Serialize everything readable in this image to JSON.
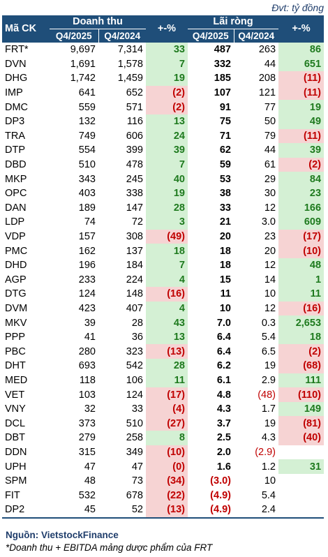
{
  "unit_note": "Đvt: tỷ đồng",
  "headers": {
    "code": "Mã CK",
    "revenue": "Doanh thu",
    "profit": "Lãi ròng",
    "change": "+-%",
    "q4_2025": "Q4/2025",
    "q4_2024": "Q4/2024"
  },
  "rows": [
    {
      "code": "FRT*",
      "rev25": "9,697",
      "rev24": "7,314",
      "rev_chg": "33",
      "rev_sign": "pos",
      "np25": "487",
      "np24": "263",
      "np_chg": "86",
      "np_sign": "pos"
    },
    {
      "code": "DVN",
      "rev25": "1,691",
      "rev24": "1,578",
      "rev_chg": "7",
      "rev_sign": "pos",
      "np25": "332",
      "np24": "44",
      "np_chg": "651",
      "np_sign": "pos"
    },
    {
      "code": "DHG",
      "rev25": "1,742",
      "rev24": "1,459",
      "rev_chg": "19",
      "rev_sign": "pos",
      "np25": "185",
      "np24": "208",
      "np_chg": "(11)",
      "np_sign": "neg"
    },
    {
      "code": "IMP",
      "rev25": "641",
      "rev24": "652",
      "rev_chg": "(2)",
      "rev_sign": "neg",
      "np25": "107",
      "np24": "121",
      "np_chg": "(11)",
      "np_sign": "neg"
    },
    {
      "code": "DMC",
      "rev25": "559",
      "rev24": "571",
      "rev_chg": "(2)",
      "rev_sign": "neg",
      "np25": "91",
      "np24": "77",
      "np_chg": "19",
      "np_sign": "pos"
    },
    {
      "code": "DP3",
      "rev25": "132",
      "rev24": "116",
      "rev_chg": "13",
      "rev_sign": "pos",
      "np25": "75",
      "np24": "50",
      "np_chg": "49",
      "np_sign": "pos"
    },
    {
      "code": "TRA",
      "rev25": "749",
      "rev24": "606",
      "rev_chg": "24",
      "rev_sign": "pos",
      "np25": "71",
      "np24": "79",
      "np_chg": "(11)",
      "np_sign": "neg"
    },
    {
      "code": "DTP",
      "rev25": "554",
      "rev24": "399",
      "rev_chg": "39",
      "rev_sign": "pos",
      "np25": "62",
      "np24": "44",
      "np_chg": "39",
      "np_sign": "pos"
    },
    {
      "code": "DBD",
      "rev25": "510",
      "rev24": "478",
      "rev_chg": "7",
      "rev_sign": "pos",
      "np25": "59",
      "np24": "61",
      "np_chg": "(2)",
      "np_sign": "neg"
    },
    {
      "code": "MKP",
      "rev25": "343",
      "rev24": "245",
      "rev_chg": "40",
      "rev_sign": "pos",
      "np25": "53",
      "np24": "29",
      "np_chg": "84",
      "np_sign": "pos"
    },
    {
      "code": "OPC",
      "rev25": "403",
      "rev24": "338",
      "rev_chg": "19",
      "rev_sign": "pos",
      "np25": "38",
      "np24": "30",
      "np_chg": "23",
      "np_sign": "pos"
    },
    {
      "code": "DAN",
      "rev25": "189",
      "rev24": "147",
      "rev_chg": "28",
      "rev_sign": "pos",
      "np25": "33",
      "np24": "12",
      "np_chg": "166",
      "np_sign": "pos"
    },
    {
      "code": "LDP",
      "rev25": "74",
      "rev24": "72",
      "rev_chg": "3",
      "rev_sign": "pos",
      "np25": "21",
      "np24": "3.0",
      "np_chg": "609",
      "np_sign": "pos"
    },
    {
      "code": "VDP",
      "rev25": "157",
      "rev24": "308",
      "rev_chg": "(49)",
      "rev_sign": "neg",
      "np25": "20",
      "np24": "23",
      "np_chg": "(17)",
      "np_sign": "neg"
    },
    {
      "code": "PMC",
      "rev25": "162",
      "rev24": "137",
      "rev_chg": "18",
      "rev_sign": "pos",
      "np25": "18",
      "np24": "20",
      "np_chg": "(10)",
      "np_sign": "neg"
    },
    {
      "code": "DHD",
      "rev25": "196",
      "rev24": "184",
      "rev_chg": "7",
      "rev_sign": "pos",
      "np25": "18",
      "np24": "12",
      "np_chg": "48",
      "np_sign": "pos"
    },
    {
      "code": "AGP",
      "rev25": "233",
      "rev24": "224",
      "rev_chg": "4",
      "rev_sign": "pos",
      "np25": "15",
      "np24": "14",
      "np_chg": "1",
      "np_sign": "pos"
    },
    {
      "code": "DTG",
      "rev25": "124",
      "rev24": "148",
      "rev_chg": "(16)",
      "rev_sign": "neg",
      "np25": "11",
      "np24": "10",
      "np_chg": "11",
      "np_sign": "pos"
    },
    {
      "code": "DVM",
      "rev25": "423",
      "rev24": "407",
      "rev_chg": "4",
      "rev_sign": "pos",
      "np25": "10",
      "np24": "12",
      "np_chg": "(16)",
      "np_sign": "neg"
    },
    {
      "code": "MKV",
      "rev25": "39",
      "rev24": "28",
      "rev_chg": "43",
      "rev_sign": "pos",
      "np25": "7.0",
      "np24": "0.3",
      "np_chg": "2,653",
      "np_sign": "pos"
    },
    {
      "code": "PPP",
      "rev25": "41",
      "rev24": "36",
      "rev_chg": "13",
      "rev_sign": "pos",
      "np25": "6.4",
      "np24": "5.4",
      "np_chg": "18",
      "np_sign": "pos"
    },
    {
      "code": "PBC",
      "rev25": "280",
      "rev24": "323",
      "rev_chg": "(13)",
      "rev_sign": "neg",
      "np25": "6.4",
      "np24": "6.5",
      "np_chg": "(2)",
      "np_sign": "neg"
    },
    {
      "code": "DHT",
      "rev25": "693",
      "rev24": "542",
      "rev_chg": "28",
      "rev_sign": "pos",
      "np25": "6.2",
      "np24": "19",
      "np_chg": "(68)",
      "np_sign": "neg"
    },
    {
      "code": "MED",
      "rev25": "118",
      "rev24": "106",
      "rev_chg": "11",
      "rev_sign": "pos",
      "np25": "6.1",
      "np24": "2.9",
      "np_chg": "111",
      "np_sign": "pos"
    },
    {
      "code": "VET",
      "rev25": "103",
      "rev24": "124",
      "rev_chg": "(17)",
      "rev_sign": "neg",
      "np25": "4.8",
      "np24": "(48)",
      "np24_red": true,
      "np_chg": "(110)",
      "np_sign": "neg"
    },
    {
      "code": "VNY",
      "rev25": "32",
      "rev24": "33",
      "rev_chg": "(4)",
      "rev_sign": "neg",
      "np25": "4.3",
      "np24": "1.7",
      "np_chg": "149",
      "np_sign": "pos"
    },
    {
      "code": "DCL",
      "rev25": "373",
      "rev24": "510",
      "rev_chg": "(27)",
      "rev_sign": "neg",
      "np25": "3.7",
      "np24": "19",
      "np_chg": "(81)",
      "np_sign": "neg"
    },
    {
      "code": "DBT",
      "rev25": "279",
      "rev24": "258",
      "rev_chg": "8",
      "rev_sign": "pos",
      "np25": "2.5",
      "np24": "4.3",
      "np_chg": "(40)",
      "np_sign": "neg"
    },
    {
      "code": "DDN",
      "rev25": "315",
      "rev24": "349",
      "rev_chg": "(10)",
      "rev_sign": "neg",
      "np25": "2.0",
      "np24": "(2.9)",
      "np24_red": true,
      "np_chg": "",
      "np_sign": "na"
    },
    {
      "code": "UPH",
      "rev25": "47",
      "rev24": "47",
      "rev_chg": "(0)",
      "rev_sign": "neg",
      "np25": "1.6",
      "np24": "1.2",
      "np_chg": "31",
      "np_sign": "pos"
    },
    {
      "code": "SPM",
      "rev25": "48",
      "rev24": "73",
      "rev_chg": "(34)",
      "rev_sign": "neg",
      "np25": "(3.0)",
      "np25_red": true,
      "np24": "10",
      "np_chg": "",
      "np_sign": "na"
    },
    {
      "code": "FIT",
      "rev25": "532",
      "rev24": "678",
      "rev_chg": "(22)",
      "rev_sign": "neg",
      "np25": "(4.9)",
      "np25_red": true,
      "np24": "5.4",
      "np_chg": "",
      "np_sign": "na"
    },
    {
      "code": "DP2",
      "rev25": "45",
      "rev24": "52",
      "rev_chg": "(13)",
      "rev_sign": "neg",
      "np25": "(4.9)",
      "np25_red": true,
      "np24": "2.4",
      "np_chg": "",
      "np_sign": "na"
    }
  ],
  "source": "Nguồn: VietstockFinance",
  "footnote": "*Doanh thu + EBITDA mảng dược phẩm của FRT",
  "colors": {
    "header_bg": "#1f4e79",
    "positive_bg": "#d4f0d4",
    "positive_text": "#1e7a1e",
    "negative_bg": "#f6d3d3",
    "negative_text": "#c00000"
  }
}
